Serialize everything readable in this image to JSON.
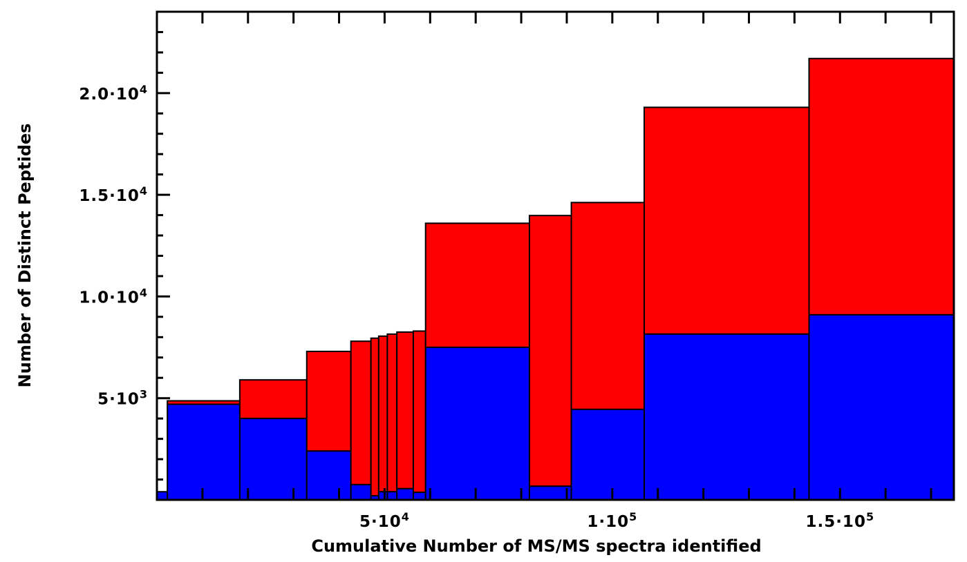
{
  "chart_data": {
    "type": "bar",
    "subtype": "variable-width stacked histogram",
    "title": "",
    "xlabel": "Cumulative Number of MS/MS  spectra identified",
    "ylabel": "Number of Distinct Peptides",
    "xlim": [
      0,
      175000
    ],
    "ylim": [
      0,
      24000
    ],
    "grid": false,
    "legend": "none",
    "x_ticks": [
      {
        "value": 50000,
        "mantissa": "5",
        "exponent": "4"
      },
      {
        "value": 100000,
        "mantissa": "1",
        "exponent": "5"
      },
      {
        "value": 150000,
        "mantissa": "1.5",
        "exponent": "5"
      }
    ],
    "y_ticks": [
      {
        "value": 5000,
        "mantissa": "5",
        "exponent": "3"
      },
      {
        "value": 10000,
        "mantissa": "1.0",
        "exponent": "4"
      },
      {
        "value": 15000,
        "mantissa": "1.5",
        "exponent": "4"
      },
      {
        "value": 20000,
        "mantissa": "2.0",
        "exponent": "4"
      }
    ],
    "colors": {
      "series_1": "#0000ff",
      "series_2": "#ff0000",
      "edge": "#000000"
    },
    "bins": [
      {
        "x0": 0,
        "x1": 2300,
        "blue": 400,
        "total": 400
      },
      {
        "x0": 2300,
        "x1": 18200,
        "blue": 4700,
        "total": 4870
      },
      {
        "x0": 18200,
        "x1": 32900,
        "blue": 4000,
        "total": 5900
      },
      {
        "x0": 32900,
        "x1": 42600,
        "blue": 2400,
        "total": 7300
      },
      {
        "x0": 42600,
        "x1": 47000,
        "blue": 750,
        "total": 7800
      },
      {
        "x0": 47000,
        "x1": 48700,
        "blue": 200,
        "total": 7950
      },
      {
        "x0": 48700,
        "x1": 50600,
        "blue": 400,
        "total": 8050
      },
      {
        "x0": 50600,
        "x1": 52700,
        "blue": 400,
        "total": 8150
      },
      {
        "x0": 52700,
        "x1": 56300,
        "blue": 550,
        "total": 8250
      },
      {
        "x0": 56300,
        "x1": 59000,
        "blue": 370,
        "total": 8300
      },
      {
        "x0": 59000,
        "x1": 81800,
        "blue": 7500,
        "total": 13600
      },
      {
        "x0": 81800,
        "x1": 91000,
        "blue": 670,
        "total": 13980
      },
      {
        "x0": 91000,
        "x1": 107000,
        "blue": 4450,
        "total": 14620
      },
      {
        "x0": 107000,
        "x1": 143200,
        "blue": 8150,
        "total": 19300
      },
      {
        "x0": 143200,
        "x1": 175000,
        "blue": 9100,
        "total": 21700
      }
    ]
  }
}
